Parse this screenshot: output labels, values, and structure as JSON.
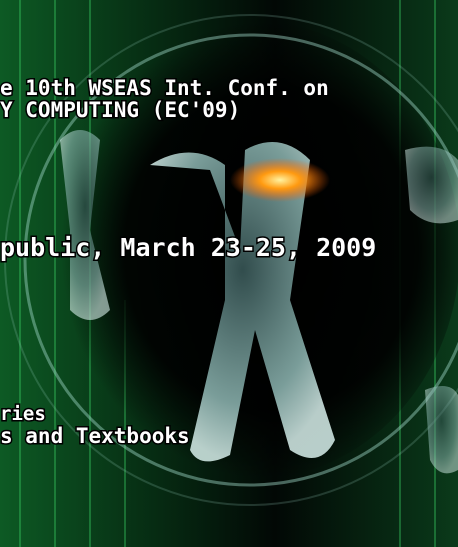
{
  "cover": {
    "lines": [
      "e 10th WSEAS Int. Conf. on",
      "Y COMPUTING (EC'09)",
      "public, March 23-25, 2009",
      "ries",
      "s and Textbooks"
    ]
  }
}
